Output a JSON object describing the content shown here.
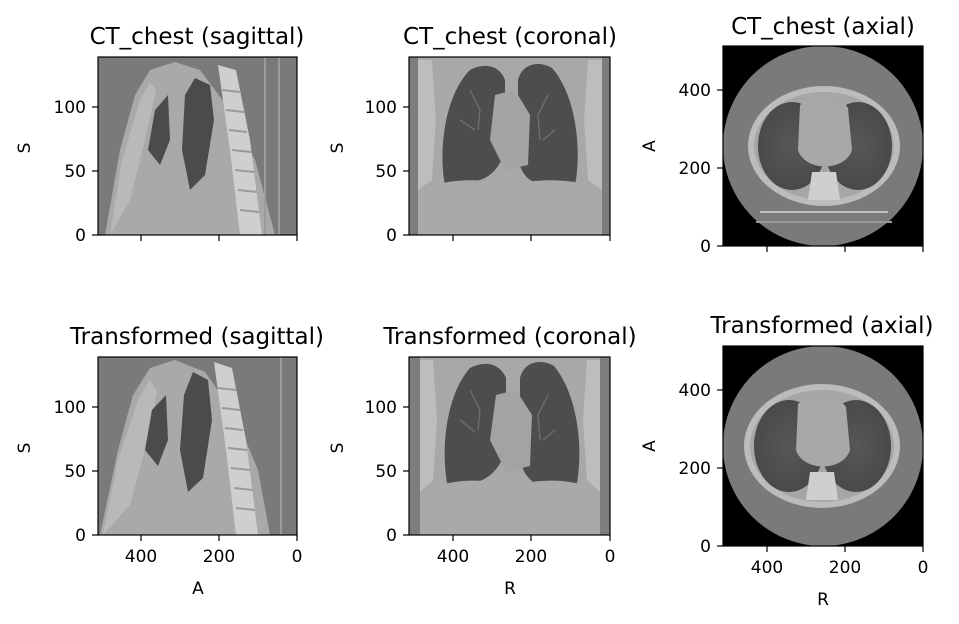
{
  "figure": {
    "panels": [
      {
        "id": "p0",
        "title": "CT_chest (sagittal)",
        "ylabel": "S",
        "xlabel": "",
        "view": "sagittal",
        "transformed": false,
        "yticks": [
          "0",
          "50",
          "100"
        ],
        "xticks": [
          "",
          "",
          ""
        ]
      },
      {
        "id": "p1",
        "title": "CT_chest (coronal)",
        "ylabel": "S",
        "xlabel": "",
        "view": "coronal",
        "transformed": false,
        "yticks": [
          "0",
          "50",
          "100"
        ],
        "xticks": [
          "",
          "",
          ""
        ]
      },
      {
        "id": "p2",
        "title": "CT_chest (axial)",
        "ylabel": "A",
        "xlabel": "",
        "view": "axial",
        "transformed": false,
        "yticks": [
          "0",
          "200",
          "400"
        ],
        "xticks": [
          "",
          "",
          ""
        ]
      },
      {
        "id": "p3",
        "title": "Transformed (sagittal)",
        "ylabel": "S",
        "xlabel": "A",
        "view": "sagittal",
        "transformed": true,
        "yticks": [
          "0",
          "50",
          "100"
        ],
        "xticks": [
          "400",
          "200",
          "0"
        ]
      },
      {
        "id": "p4",
        "title": "Transformed (coronal)",
        "ylabel": "S",
        "xlabel": "R",
        "view": "coronal",
        "transformed": true,
        "yticks": [
          "0",
          "50",
          "100"
        ],
        "xticks": [
          "400",
          "200",
          "0"
        ]
      },
      {
        "id": "p5",
        "title": "Transformed (axial)",
        "ylabel": "A",
        "xlabel": "R",
        "view": "axial",
        "transformed": true,
        "yticks": [
          "0",
          "200",
          "400"
        ],
        "xticks": [
          "400",
          "200",
          "0"
        ]
      }
    ]
  },
  "colors": {
    "background": "#ffffff",
    "ct_background": "#7a7a7a",
    "air_black": "#000000",
    "soft_tissue": "#a9a9a9",
    "lung": "#4f4f4f",
    "bone": "#cfcfcf",
    "fat": "#8e8e8e"
  }
}
